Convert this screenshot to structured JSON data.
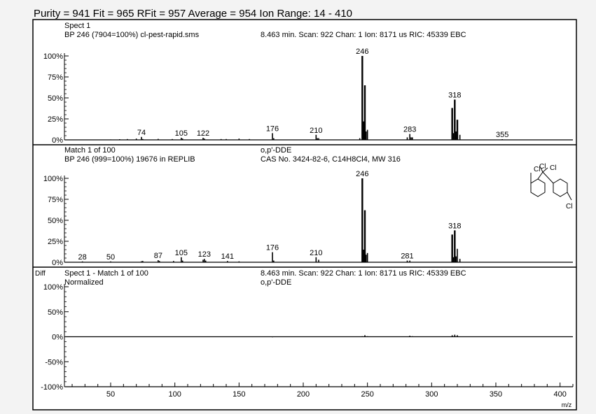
{
  "header": {
    "summary": "Purity = 941  Fit = 965  RFit = 957  Average = 954  Ion Range: 14 - 410"
  },
  "chart_data": [
    {
      "type": "bar",
      "panel": "unknown spectrum",
      "label_line1_left": "Spect 1",
      "label_line2_left": "BP 246 (7904=100%) cl-pest-rapid.sms",
      "label_line2_right": "8.463 min. Scan: 922 Chan: 1 Ion: 8171 us RIC: 45339 EBC",
      "yticks": [
        "100%",
        "75%",
        "50%",
        "25%",
        "0%"
      ],
      "ylim": [
        0,
        100
      ],
      "xlim": [
        14,
        410
      ],
      "peaks": [
        {
          "mz": 50,
          "intensity": 0.5
        },
        {
          "mz": 57,
          "intensity": 0.8
        },
        {
          "mz": 63,
          "intensity": 1.0
        },
        {
          "mz": 70,
          "intensity": 1.5
        },
        {
          "mz": 74,
          "intensity": 3.5
        },
        {
          "mz": 75,
          "intensity": 1.0
        },
        {
          "mz": 87,
          "intensity": 1.2
        },
        {
          "mz": 98,
          "intensity": 1.0
        },
        {
          "mz": 105,
          "intensity": 2.5
        },
        {
          "mz": 106,
          "intensity": 1.5
        },
        {
          "mz": 122,
          "intensity": 2.5
        },
        {
          "mz": 123,
          "intensity": 1.5
        },
        {
          "mz": 136,
          "intensity": 1.0
        },
        {
          "mz": 140,
          "intensity": 1.0
        },
        {
          "mz": 150,
          "intensity": 1.5
        },
        {
          "mz": 158,
          "intensity": 1.0
        },
        {
          "mz": 176,
          "intensity": 8
        },
        {
          "mz": 177,
          "intensity": 2
        },
        {
          "mz": 210,
          "intensity": 6
        },
        {
          "mz": 211,
          "intensity": 2
        },
        {
          "mz": 212,
          "intensity": 2
        },
        {
          "mz": 244,
          "intensity": 2
        },
        {
          "mz": 246,
          "intensity": 100
        },
        {
          "mz": 247,
          "intensity": 22
        },
        {
          "mz": 248,
          "intensity": 65
        },
        {
          "mz": 249,
          "intensity": 10
        },
        {
          "mz": 250,
          "intensity": 12
        },
        {
          "mz": 281,
          "intensity": 3
        },
        {
          "mz": 283,
          "intensity": 7
        },
        {
          "mz": 284,
          "intensity": 3
        },
        {
          "mz": 285,
          "intensity": 3
        },
        {
          "mz": 316,
          "intensity": 38
        },
        {
          "mz": 317,
          "intensity": 8
        },
        {
          "mz": 318,
          "intensity": 48
        },
        {
          "mz": 319,
          "intensity": 10
        },
        {
          "mz": 320,
          "intensity": 24
        },
        {
          "mz": 322,
          "intensity": 6
        },
        {
          "mz": 355,
          "intensity": 0.8
        }
      ],
      "peak_labels": [
        {
          "mz": 74,
          "text": "74"
        },
        {
          "mz": 105,
          "text": "105"
        },
        {
          "mz": 122,
          "text": "122"
        },
        {
          "mz": 176,
          "text": "176"
        },
        {
          "mz": 210,
          "text": "210"
        },
        {
          "mz": 246,
          "text": "246"
        },
        {
          "mz": 283,
          "text": "283"
        },
        {
          "mz": 318,
          "text": "318"
        },
        {
          "mz": 355,
          "text": "355"
        }
      ]
    },
    {
      "type": "bar",
      "panel": "library match",
      "label_line1_left": "Match 1 of 100",
      "label_line1_right": "o,p'-DDE",
      "label_line2_left": "BP 246 (999=100%) 19676 in REPLIB",
      "label_line2_right": "CAS No. 3424-82-6, C14H8Cl4, MW 316",
      "yticks": [
        "100%",
        "75%",
        "50%",
        "25%",
        "0%"
      ],
      "ylim": [
        0,
        100
      ],
      "xlim": [
        14,
        410
      ],
      "peaks": [
        {
          "mz": 28,
          "intensity": 1.0
        },
        {
          "mz": 50,
          "intensity": 1.0
        },
        {
          "mz": 74,
          "intensity": 1.2
        },
        {
          "mz": 75,
          "intensity": 1.5
        },
        {
          "mz": 87,
          "intensity": 2.5
        },
        {
          "mz": 88,
          "intensity": 1.5
        },
        {
          "mz": 99,
          "intensity": 1.5
        },
        {
          "mz": 105,
          "intensity": 6
        },
        {
          "mz": 106,
          "intensity": 2
        },
        {
          "mz": 122,
          "intensity": 3
        },
        {
          "mz": 123,
          "intensity": 4
        },
        {
          "mz": 124,
          "intensity": 2
        },
        {
          "mz": 141,
          "intensity": 1.5
        },
        {
          "mz": 150,
          "intensity": 1.0
        },
        {
          "mz": 176,
          "intensity": 12
        },
        {
          "mz": 177,
          "intensity": 2
        },
        {
          "mz": 210,
          "intensity": 6
        },
        {
          "mz": 212,
          "intensity": 3
        },
        {
          "mz": 246,
          "intensity": 100
        },
        {
          "mz": 247,
          "intensity": 15
        },
        {
          "mz": 248,
          "intensity": 62
        },
        {
          "mz": 249,
          "intensity": 9
        },
        {
          "mz": 250,
          "intensity": 11
        },
        {
          "mz": 281,
          "intensity": 2
        },
        {
          "mz": 283,
          "intensity": 2
        },
        {
          "mz": 316,
          "intensity": 33
        },
        {
          "mz": 317,
          "intensity": 6
        },
        {
          "mz": 318,
          "intensity": 38
        },
        {
          "mz": 319,
          "intensity": 7
        },
        {
          "mz": 320,
          "intensity": 16
        },
        {
          "mz": 322,
          "intensity": 4
        }
      ],
      "peak_labels": [
        {
          "mz": 28,
          "text": "28"
        },
        {
          "mz": 50,
          "text": "50"
        },
        {
          "mz": 87,
          "text": "87"
        },
        {
          "mz": 105,
          "text": "105"
        },
        {
          "mz": 123,
          "text": "123"
        },
        {
          "mz": 141,
          "text": "141"
        },
        {
          "mz": 176,
          "text": "176"
        },
        {
          "mz": 210,
          "text": "210"
        },
        {
          "mz": 246,
          "text": "246"
        },
        {
          "mz": 281,
          "text": "281"
        },
        {
          "mz": 318,
          "text": "318"
        }
      ],
      "structure_labels": [
        "Cl",
        "Cl",
        "Cl",
        "Cl"
      ]
    },
    {
      "type": "bar",
      "panel": "difference",
      "corner_label": "Diff",
      "label_line1_left": "Spect 1 - Match 1 of 100",
      "label_line1_right": "8.463 min. Scan: 922 Chan: 1 Ion: 8171 us RIC: 45339 EBC",
      "label_line2_left": "Normalized",
      "label_line2_right": "o,p'-DDE",
      "yticks": [
        "100%",
        "50%",
        "0%",
        "-50%",
        "-100%"
      ],
      "ylim": [
        -100,
        100
      ],
      "xlim": [
        14,
        410
      ],
      "xticks": [
        "50",
        "100",
        "150",
        "200",
        "250",
        "300",
        "350",
        "400"
      ],
      "xlabel": "m/z",
      "peaks": [
        {
          "mz": 176,
          "intensity": -1
        },
        {
          "mz": 210,
          "intensity": 0.5
        },
        {
          "mz": 246,
          "intensity": 1
        },
        {
          "mz": 248,
          "intensity": 3
        },
        {
          "mz": 250,
          "intensity": 1
        },
        {
          "mz": 283,
          "intensity": 2
        },
        {
          "mz": 285,
          "intensity": 1
        },
        {
          "mz": 316,
          "intensity": 3
        },
        {
          "mz": 318,
          "intensity": 4
        },
        {
          "mz": 320,
          "intensity": 3
        }
      ]
    }
  ]
}
